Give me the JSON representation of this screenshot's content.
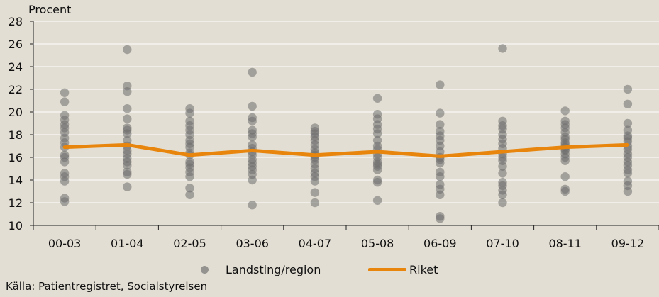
{
  "chart_data": {
    "type": "scatter",
    "ylabel": "Procent",
    "ylim": [
      10,
      28
    ],
    "yticks": [
      10,
      12,
      14,
      16,
      18,
      20,
      22,
      24,
      26,
      28
    ],
    "categories": [
      "00-03",
      "01-04",
      "02-05",
      "03-06",
      "04-07",
      "05-08",
      "06-09",
      "07-10",
      "08-11",
      "09-12"
    ],
    "grid": true,
    "legend_position": "bottom",
    "series": [
      {
        "name": "Landsting/region",
        "kind": "scatter",
        "color": "#808080",
        "points": [
          [
            12.1,
            12.4,
            13.9,
            14.3,
            14.6,
            15.6,
            16.0,
            16.2,
            16.9,
            17.3,
            17.7,
            18.2,
            18.6,
            18.9,
            19.3,
            19.7,
            20.9,
            21.7
          ],
          [
            13.4,
            14.5,
            14.7,
            15.3,
            15.6,
            15.9,
            16.3,
            16.6,
            17.0,
            17.5,
            18.1,
            18.4,
            18.6,
            19.4,
            20.3,
            21.8,
            22.3,
            25.5
          ],
          [
            12.7,
            13.3,
            14.3,
            14.7,
            15.1,
            15.4,
            15.6,
            16.2,
            16.4,
            16.9,
            17.2,
            17.5,
            18.0,
            18.4,
            18.8,
            19.2,
            19.9,
            20.3
          ],
          [
            11.8,
            14.0,
            14.5,
            14.9,
            15.2,
            15.5,
            15.8,
            16.2,
            16.5,
            16.8,
            17.1,
            17.8,
            18.1,
            18.4,
            19.2,
            19.5,
            20.5,
            23.5
          ],
          [
            12.0,
            12.9,
            13.9,
            14.3,
            14.6,
            15.0,
            15.4,
            15.8,
            16.0,
            16.2,
            16.4,
            16.7,
            17.1,
            17.5,
            17.8,
            18.1,
            18.3,
            18.6
          ],
          [
            12.2,
            13.8,
            14.0,
            14.9,
            15.2,
            15.4,
            15.6,
            16.0,
            16.3,
            16.7,
            17.0,
            17.5,
            18.1,
            18.5,
            18.9,
            19.4,
            19.8,
            21.2
          ],
          [
            10.6,
            10.8,
            12.7,
            13.2,
            13.6,
            14.3,
            14.7,
            15.5,
            15.8,
            16.0,
            16.5,
            17.0,
            17.5,
            17.9,
            18.3,
            18.9,
            19.9,
            22.4
          ],
          [
            12.0,
            12.7,
            13.1,
            13.5,
            13.8,
            14.6,
            15.2,
            15.7,
            16.0,
            16.3,
            16.8,
            17.2,
            17.6,
            18.0,
            18.5,
            18.8,
            19.2,
            25.6
          ],
          [
            13.0,
            13.2,
            14.3,
            15.7,
            16.0,
            16.3,
            16.6,
            16.9,
            17.1,
            17.3,
            17.6,
            17.8,
            18.2,
            18.6,
            18.9,
            19.2,
            20.1,
            16.7
          ],
          [
            13.0,
            13.5,
            13.9,
            14.6,
            14.9,
            15.3,
            15.6,
            16.0,
            16.3,
            16.7,
            17.0,
            17.4,
            17.7,
            17.9,
            18.4,
            19.0,
            20.7,
            22.0
          ]
        ]
      },
      {
        "name": "Riket",
        "kind": "line",
        "color": "#e8850c",
        "values": [
          16.9,
          17.1,
          16.2,
          16.6,
          16.2,
          16.5,
          16.1,
          16.5,
          16.9,
          17.1
        ]
      }
    ],
    "source": "Källa: Patientregistret, Socialstyrelsen"
  }
}
